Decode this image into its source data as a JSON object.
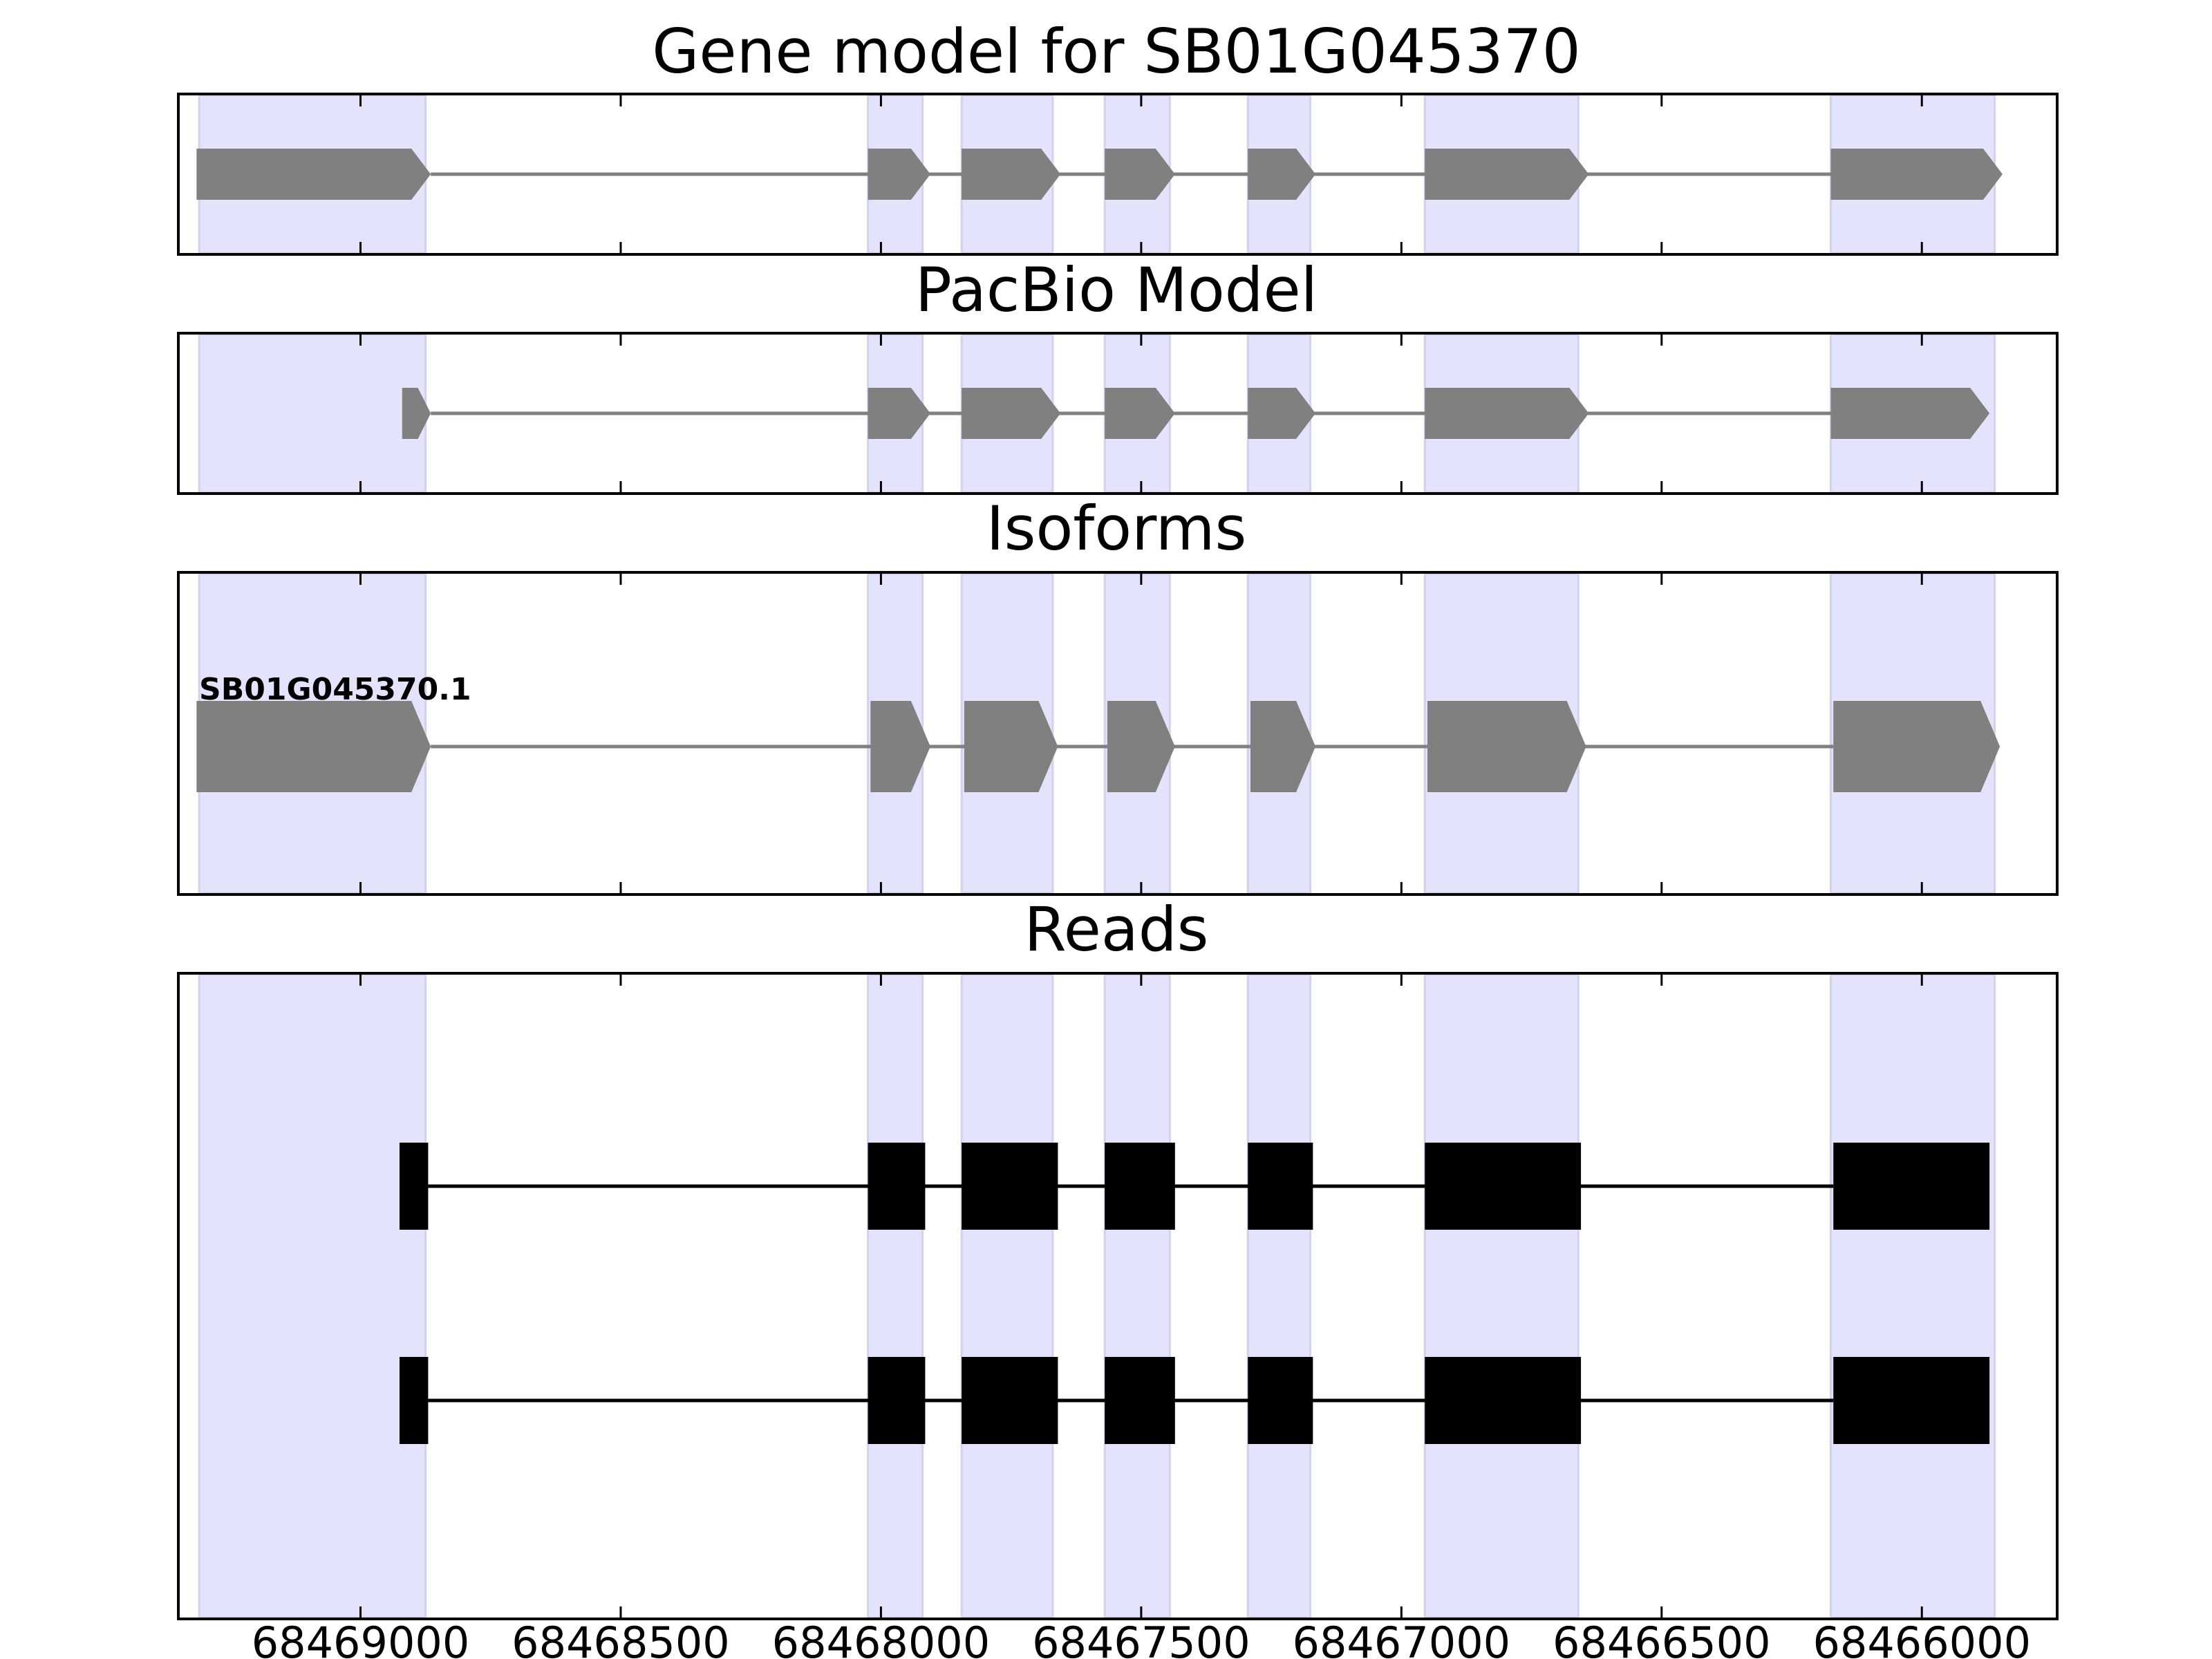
{
  "chart_data": {
    "type": "gene_track",
    "axis": {
      "direction": "reversed",
      "xlim": [
        68469350,
        68465740
      ],
      "ticks": [
        68469000,
        68468500,
        68468000,
        68467500,
        68467000,
        68466500,
        68466000
      ],
      "tick_labels": [
        "68469000",
        "68468500",
        "68468000",
        "68467500",
        "68467000",
        "68466500",
        "68466000"
      ]
    },
    "highlight_color": "#e3e3fb",
    "feature_color": "#808080",
    "read_color": "#000000",
    "highlight_regions": [
      [
        68469310,
        68468875
      ],
      [
        68468025,
        68467920
      ],
      [
        68467845,
        68467670
      ],
      [
        68467570,
        68467445
      ],
      [
        68467295,
        68467175
      ],
      [
        68466955,
        68466660
      ],
      [
        68466175,
        68465860
      ]
    ],
    "panels": [
      {
        "key": "gene_model",
        "title": "Gene model for SB01G045370",
        "features": [
          {
            "exons": [
              [
                68469315,
                68468865
              ],
              [
                68468025,
                68467905
              ],
              [
                68467845,
                68467655
              ],
              [
                68467570,
                68467435
              ],
              [
                68467295,
                68467165
              ],
              [
                68466955,
                68466640
              ],
              [
                68466175,
                68465845
              ]
            ]
          }
        ]
      },
      {
        "key": "pacbio_model",
        "title": "PacBio Model",
        "features": [
          {
            "exons": [
              [
                68468920,
                68468865
              ],
              [
                68468025,
                68467905
              ],
              [
                68467845,
                68467655
              ],
              [
                68467570,
                68467435
              ],
              [
                68467295,
                68467165
              ],
              [
                68466955,
                68466640
              ],
              [
                68466175,
                68465870
              ]
            ]
          }
        ]
      },
      {
        "key": "isoforms",
        "title": "Isoforms",
        "features": [
          {
            "name": "SB01G045370.1",
            "exons": [
              [
                68469315,
                68468865
              ],
              [
                68468020,
                68467905
              ],
              [
                68467840,
                68467660
              ],
              [
                68467565,
                68467435
              ],
              [
                68467290,
                68467165
              ],
              [
                68466950,
                68466645
              ],
              [
                68466170,
                68465850
              ]
            ]
          }
        ]
      },
      {
        "key": "reads",
        "title": "Reads",
        "features": [
          {
            "exons": [
              [
                68468925,
                68468870
              ],
              [
                68468025,
                68467915
              ],
              [
                68467845,
                68467660
              ],
              [
                68467570,
                68467435
              ],
              [
                68467295,
                68467170
              ],
              [
                68466955,
                68466655
              ],
              [
                68466170,
                68465870
              ]
            ]
          },
          {
            "exons": [
              [
                68468925,
                68468870
              ],
              [
                68468025,
                68467915
              ],
              [
                68467845,
                68467660
              ],
              [
                68467570,
                68467435
              ],
              [
                68467295,
                68467170
              ],
              [
                68466955,
                68466655
              ],
              [
                68466170,
                68465870
              ]
            ]
          }
        ]
      }
    ]
  }
}
